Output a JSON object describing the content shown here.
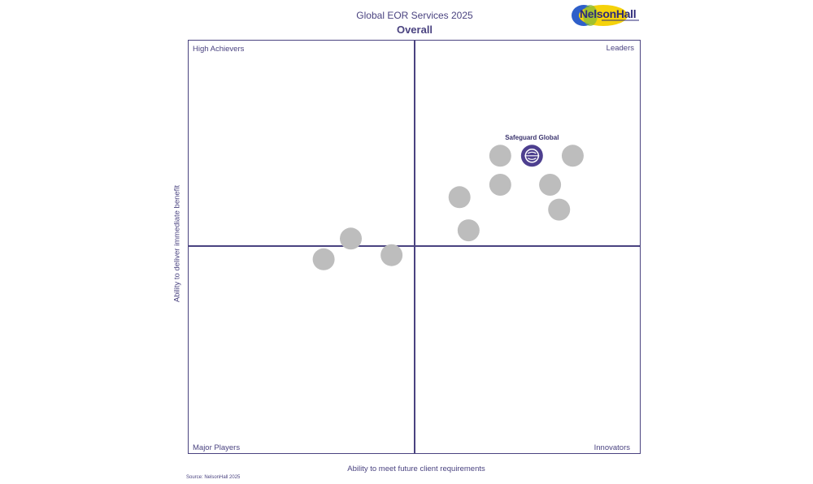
{
  "title": "Global EOR Services 2025",
  "subtitle": "Overall",
  "logo": {
    "text": "NelsonHall",
    "colors": [
      "#2e5fc9",
      "#f5d20a"
    ]
  },
  "quadrants": {
    "top_left": "High Achievers",
    "top_right": "Leaders",
    "bottom_left": "Major Players",
    "bottom_right": "Innovators"
  },
  "source": "Source: NelsonHall 2025",
  "chart_data": {
    "type": "scatter",
    "xlabel": "Ability to meet future client requirements",
    "ylabel": "Ability to deliver immediate benefit",
    "xlim": [
      0,
      10
    ],
    "ylim": [
      0,
      10
    ],
    "grid": false,
    "quadrant_dividers": {
      "x": 5,
      "y": 5
    },
    "points": [
      {
        "x": 7.6,
        "y": 7.2,
        "name": "Safeguard Global",
        "highlight": true
      },
      {
        "x": 6.9,
        "y": 7.2
      },
      {
        "x": 8.5,
        "y": 7.2
      },
      {
        "x": 6.9,
        "y": 6.5
      },
      {
        "x": 8.0,
        "y": 6.5
      },
      {
        "x": 6.0,
        "y": 6.2
      },
      {
        "x": 8.2,
        "y": 5.9
      },
      {
        "x": 6.2,
        "y": 5.4
      },
      {
        "x": 3.6,
        "y": 5.2
      },
      {
        "x": 3.0,
        "y": 4.7
      },
      {
        "x": 4.5,
        "y": 4.8
      }
    ],
    "colors": {
      "default": "#bdbdbd",
      "highlight": "#4d3f8f"
    }
  }
}
